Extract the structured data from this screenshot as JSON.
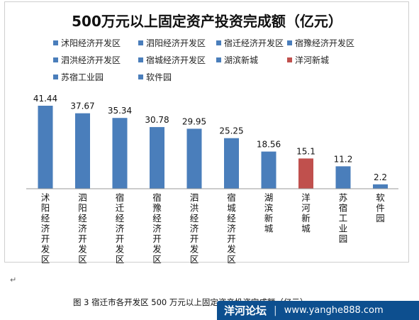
{
  "chart_data": {
    "type": "bar",
    "title": "500万元以上固定资产投资完成额（亿元）",
    "categories": [
      "沭阳经济开发区",
      "泗阳经济开发区",
      "宿迁经济开发区",
      "宿豫经济开发区",
      "泗洪经济开发区",
      "宿城经济开发区",
      "湖滨新城",
      "洋河新城",
      "苏宿工业园",
      "软件园"
    ],
    "values": [
      41.44,
      37.67,
      35.34,
      30.78,
      29.95,
      25.25,
      18.56,
      15.1,
      11.2,
      2.2
    ],
    "value_labels": [
      "41.44",
      "37.67",
      "35.34",
      "30.78",
      "29.95",
      "25.25",
      "18.56",
      "15.1",
      "11.2",
      "2.2"
    ],
    "colors": [
      "#4a7ebb",
      "#4a7ebb",
      "#4a7ebb",
      "#4a7ebb",
      "#4a7ebb",
      "#4a7ebb",
      "#4a7ebb",
      "#c0504d",
      "#4a7ebb",
      "#4a7ebb"
    ],
    "legend": [
      "沭阳经济开发区",
      "泗阳经济开发区",
      "宿迁经济开发区",
      "宿豫经济开发区",
      "泗洪经济开发区",
      "宿城经济开发区",
      "湖滨新城",
      "洋河新城",
      "苏宿工业园",
      "软件园"
    ],
    "legend_placement": "top",
    "ylim": [
      0,
      45
    ],
    "grid": false,
    "xlabel": "",
    "ylabel": ""
  },
  "paragraph_mark": "↵",
  "caption": "图 3  宿迁市各开发区 500 万元以上固定资产投资完成额（亿元）",
  "watermark": {
    "name": "洋河论坛",
    "separator": "|",
    "url": "www.yanghe888.com"
  }
}
